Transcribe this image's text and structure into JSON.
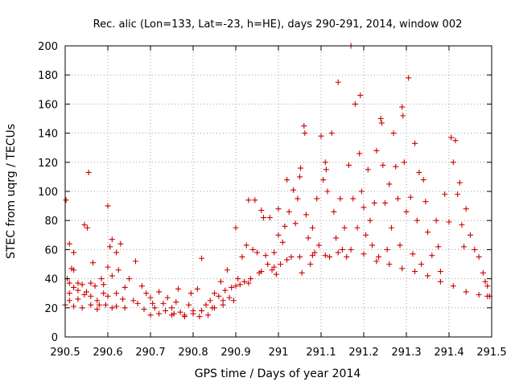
{
  "chart_data": {
    "type": "scatter",
    "title": "Rec. alic (Lon=133, Lat=-23, h=HE), days 290-291, 2014, window 002",
    "xlabel": "GPS time / Days of year 2014",
    "ylabel": "STEC from uqrg / TECUs",
    "xlim": [
      290.5,
      291.5
    ],
    "ylim": [
      0,
      200
    ],
    "x_ticks": [
      290.5,
      290.6,
      290.7,
      290.8,
      290.9,
      291,
      291.1,
      291.2,
      291.3,
      291.4,
      291.5
    ],
    "x_tick_labels": [
      "290.5",
      "290.6",
      "290.7",
      "290.8",
      "290.9",
      "291",
      "291.1",
      "291.2",
      "291.3",
      "291.4",
      "291.5"
    ],
    "y_ticks": [
      0,
      20,
      40,
      60,
      80,
      100,
      120,
      140,
      160,
      180,
      200
    ],
    "y_tick_labels": [
      "0",
      "20",
      "40",
      "60",
      "80",
      "100",
      "120",
      "140",
      "160",
      "180",
      "200"
    ],
    "grid": true,
    "marker": "+",
    "color": "#cc0000",
    "series": [
      {
        "points": [
          [
            290.502,
            94
          ],
          [
            290.51,
            64
          ],
          [
            290.52,
            58
          ],
          [
            290.515,
            47
          ],
          [
            290.52,
            46
          ],
          [
            290.505,
            40
          ],
          [
            290.51,
            37
          ],
          [
            290.53,
            37
          ],
          [
            290.54,
            36
          ],
          [
            290.52,
            34
          ],
          [
            290.53,
            32
          ],
          [
            290.51,
            30
          ],
          [
            290.545,
            29
          ],
          [
            290.53,
            26
          ],
          [
            290.51,
            25
          ],
          [
            290.5,
            22
          ],
          [
            290.52,
            21
          ],
          [
            290.54,
            20
          ],
          [
            290.545,
            77
          ],
          [
            290.552,
            75
          ],
          [
            290.555,
            113
          ],
          [
            290.565,
            51
          ],
          [
            290.56,
            37
          ],
          [
            290.57,
            35
          ],
          [
            290.55,
            31
          ],
          [
            290.56,
            28
          ],
          [
            290.575,
            25
          ],
          [
            290.58,
            22
          ],
          [
            290.56,
            22
          ],
          [
            290.575,
            19
          ],
          [
            290.585,
            40
          ],
          [
            290.59,
            36
          ],
          [
            290.6,
            90
          ],
          [
            290.61,
            67
          ],
          [
            290.605,
            62
          ],
          [
            290.6,
            48
          ],
          [
            290.61,
            42
          ],
          [
            290.59,
            30
          ],
          [
            290.6,
            28
          ],
          [
            290.595,
            22
          ],
          [
            290.61,
            20
          ],
          [
            290.62,
            58
          ],
          [
            290.63,
            64
          ],
          [
            290.625,
            46
          ],
          [
            290.64,
            34
          ],
          [
            290.62,
            30
          ],
          [
            290.635,
            26
          ],
          [
            290.62,
            21
          ],
          [
            290.64,
            20
          ],
          [
            290.65,
            40
          ],
          [
            290.66,
            25
          ],
          [
            290.665,
            52
          ],
          [
            290.67,
            23
          ],
          [
            290.68,
            35
          ],
          [
            290.685,
            19
          ],
          [
            290.69,
            30
          ],
          [
            290.7,
            27
          ],
          [
            290.705,
            23
          ],
          [
            290.71,
            20
          ],
          [
            290.72,
            31
          ],
          [
            290.73,
            23
          ],
          [
            290.735,
            18
          ],
          [
            290.74,
            27
          ],
          [
            290.75,
            20
          ],
          [
            290.755,
            16
          ],
          [
            290.76,
            24
          ],
          [
            290.765,
            33
          ],
          [
            290.77,
            17
          ],
          [
            290.78,
            15
          ],
          [
            290.79,
            22
          ],
          [
            290.795,
            30
          ],
          [
            290.8,
            18
          ],
          [
            290.81,
            33
          ],
          [
            290.815,
            14
          ],
          [
            290.82,
            54
          ],
          [
            290.83,
            22
          ],
          [
            290.835,
            15
          ],
          [
            290.84,
            25
          ],
          [
            290.845,
            20
          ],
          [
            290.85,
            30
          ],
          [
            290.86,
            28
          ],
          [
            290.865,
            38
          ],
          [
            290.87,
            22
          ],
          [
            290.875,
            32
          ],
          [
            290.88,
            46
          ],
          [
            290.885,
            27
          ],
          [
            290.89,
            34
          ],
          [
            290.895,
            25
          ],
          [
            290.9,
            75
          ],
          [
            290.905,
            40
          ],
          [
            290.91,
            36
          ],
          [
            290.915,
            55
          ],
          [
            290.92,
            38
          ],
          [
            290.925,
            63
          ],
          [
            290.93,
            94
          ],
          [
            290.935,
            40
          ],
          [
            290.94,
            60
          ],
          [
            290.945,
            94
          ],
          [
            290.95,
            58
          ],
          [
            290.955,
            44
          ],
          [
            290.96,
            87
          ],
          [
            290.965,
            82
          ],
          [
            290.97,
            56
          ],
          [
            290.975,
            50
          ],
          [
            290.98,
            82
          ],
          [
            290.985,
            46
          ],
          [
            290.99,
            58
          ],
          [
            290.995,
            43
          ],
          [
            291.0,
            88
          ],
          [
            291.0,
            70
          ],
          [
            291.005,
            50
          ],
          [
            291.01,
            65
          ],
          [
            291.015,
            76
          ],
          [
            291.02,
            108
          ],
          [
            291.025,
            86
          ],
          [
            291.03,
            55
          ],
          [
            291.035,
            101
          ],
          [
            291.04,
            78
          ],
          [
            291.045,
            95
          ],
          [
            291.05,
            110
          ],
          [
            291.052,
            116
          ],
          [
            291.055,
            44
          ],
          [
            291.06,
            145
          ],
          [
            291.062,
            140
          ],
          [
            291.065,
            84
          ],
          [
            291.07,
            68
          ],
          [
            291.075,
            50
          ],
          [
            291.08,
            75
          ],
          [
            291.085,
            58
          ],
          [
            291.09,
            95
          ],
          [
            291.095,
            63
          ],
          [
            291.1,
            138
          ],
          [
            291.105,
            108
          ],
          [
            291.11,
            120
          ],
          [
            291.112,
            115
          ],
          [
            291.115,
            100
          ],
          [
            291.12,
            55
          ],
          [
            291.125,
            140
          ],
          [
            291.13,
            86
          ],
          [
            291.135,
            68
          ],
          [
            291.14,
            175
          ],
          [
            291.145,
            95
          ],
          [
            291.15,
            60
          ],
          [
            291.155,
            75
          ],
          [
            291.16,
            55
          ],
          [
            291.165,
            118
          ],
          [
            291.17,
            200
          ],
          [
            291.175,
            95
          ],
          [
            291.18,
            160
          ],
          [
            291.185,
            75
          ],
          [
            291.19,
            126
          ],
          [
            291.192,
            166
          ],
          [
            291.195,
            100
          ],
          [
            291.2,
            89
          ],
          [
            291.205,
            70
          ],
          [
            291.21,
            115
          ],
          [
            291.215,
            80
          ],
          [
            291.22,
            63
          ],
          [
            291.225,
            92
          ],
          [
            291.23,
            128
          ],
          [
            291.235,
            55
          ],
          [
            291.24,
            150
          ],
          [
            291.242,
            147
          ],
          [
            291.245,
            118
          ],
          [
            291.25,
            92
          ],
          [
            291.255,
            60
          ],
          [
            291.26,
            105
          ],
          [
            291.265,
            75
          ],
          [
            291.27,
            140
          ],
          [
            291.275,
            117
          ],
          [
            291.28,
            95
          ],
          [
            291.285,
            63
          ],
          [
            291.29,
            158
          ],
          [
            291.292,
            152
          ],
          [
            291.295,
            120
          ],
          [
            291.3,
            86
          ],
          [
            291.305,
            178
          ],
          [
            291.31,
            96
          ],
          [
            291.315,
            57
          ],
          [
            291.32,
            133
          ],
          [
            291.325,
            80
          ],
          [
            291.33,
            113
          ],
          [
            291.335,
            50
          ],
          [
            291.34,
            108
          ],
          [
            291.345,
            93
          ],
          [
            291.35,
            72
          ],
          [
            291.36,
            56
          ],
          [
            291.37,
            80
          ],
          [
            291.375,
            62
          ],
          [
            291.38,
            45
          ],
          [
            291.39,
            98
          ],
          [
            291.4,
            79
          ],
          [
            291.405,
            137
          ],
          [
            291.41,
            120
          ],
          [
            291.415,
            135
          ],
          [
            291.42,
            98
          ],
          [
            291.425,
            106
          ],
          [
            291.43,
            77
          ],
          [
            291.435,
            62
          ],
          [
            291.44,
            88
          ],
          [
            291.45,
            70
          ],
          [
            291.46,
            60
          ],
          [
            291.47,
            55
          ],
          [
            291.48,
            44
          ],
          [
            291.485,
            38
          ],
          [
            291.49,
            35
          ],
          [
            291.495,
            28
          ],
          [
            290.7,
            15
          ],
          [
            290.72,
            16
          ],
          [
            290.75,
            15
          ],
          [
            290.78,
            14
          ],
          [
            290.8,
            16
          ],
          [
            290.82,
            18
          ],
          [
            290.85,
            20
          ],
          [
            290.87,
            25
          ],
          [
            290.9,
            35
          ],
          [
            290.93,
            37
          ],
          [
            290.96,
            45
          ],
          [
            290.99,
            48
          ],
          [
            291.02,
            53
          ],
          [
            291.05,
            55
          ],
          [
            291.08,
            56
          ],
          [
            291.11,
            56
          ],
          [
            291.14,
            58
          ],
          [
            291.17,
            60
          ],
          [
            291.2,
            57
          ],
          [
            291.23,
            52
          ],
          [
            291.26,
            50
          ],
          [
            291.29,
            47
          ],
          [
            291.32,
            45
          ],
          [
            291.35,
            42
          ],
          [
            291.38,
            38
          ],
          [
            291.41,
            35
          ],
          [
            291.44,
            31
          ],
          [
            291.47,
            29
          ],
          [
            291.49,
            28
          ]
        ]
      }
    ]
  }
}
